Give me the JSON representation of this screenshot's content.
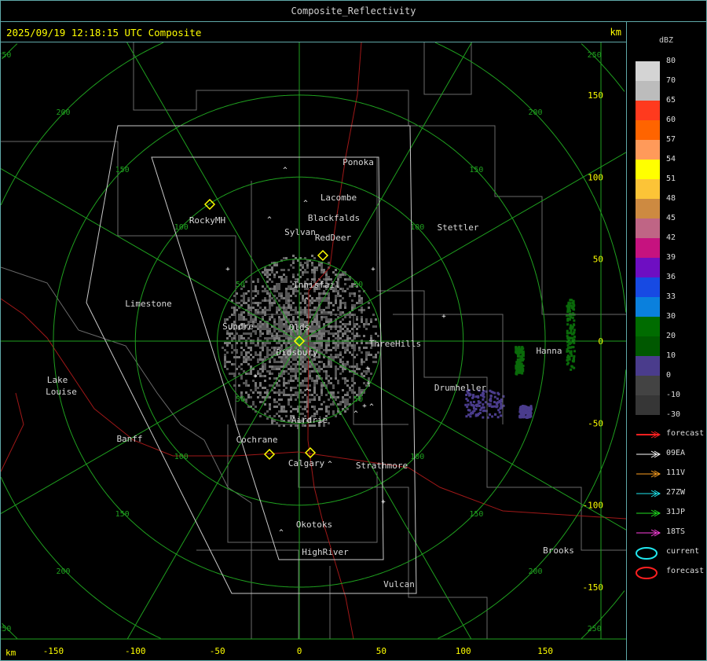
{
  "window": {
    "title": "Composite_Reflectivity"
  },
  "header": {
    "timestamp": "2025/09/19 12:18:15 UTC Composite",
    "unit": "km"
  },
  "axes": {
    "unit_bottom": "km",
    "x_ticks": [
      "-150",
      "-100",
      "-50",
      "0",
      "50",
      "100",
      "150"
    ],
    "y_ticks": [
      "150",
      "100",
      "50",
      "0",
      "-50",
      "-100",
      "-150"
    ],
    "range_rings_km": [
      "50",
      "100",
      "150",
      "200",
      "250"
    ]
  },
  "towns": [
    "Ponoka",
    "Lacombe",
    "Blackfalds",
    "Sylvan",
    "RedDeer",
    "Stettler",
    "RockyMH",
    "Innisfail",
    "Limestone",
    "Sundre",
    "Olds",
    "ThreeHills",
    "Didsbury",
    "Hanna",
    "Drumheller",
    "Lake",
    "Louise",
    "Airdrie",
    "Banff",
    "Cochrane",
    "Calgary",
    "Strathmore",
    "Okotoks",
    "HighRiver",
    "Brooks",
    "Vulcan"
  ],
  "legend": {
    "unit": "dBZ",
    "levels": [
      {
        "label": "80",
        "color": "#d4d4d4"
      },
      {
        "label": "70",
        "color": "#bcbcbc"
      },
      {
        "label": "65",
        "color": "#ff3a1e"
      },
      {
        "label": "60",
        "color": "#ff6400"
      },
      {
        "label": "57",
        "color": "#ff9a5a"
      },
      {
        "label": "54",
        "color": "#ffff00"
      },
      {
        "label": "51",
        "color": "#fcc437"
      },
      {
        "label": "48",
        "color": "#cd8a41"
      },
      {
        "label": "45",
        "color": "#bf6585"
      },
      {
        "label": "42",
        "color": "#c6127f"
      },
      {
        "label": "39",
        "color": "#6e0ec2"
      },
      {
        "label": "36",
        "color": "#174ae3"
      },
      {
        "label": "33",
        "color": "#0a80dd"
      },
      {
        "label": "30",
        "color": "#006c00"
      },
      {
        "label": "20",
        "color": "#005800"
      },
      {
        "label": "10",
        "color": "#4a3c8c"
      },
      {
        "label": "0",
        "color": "#434343"
      },
      {
        "label": "-10",
        "color": "#363636"
      }
    ],
    "bottom_label": "-30",
    "tracks": [
      {
        "label": "forecast",
        "color": "#ff2020",
        "type": "arrow"
      },
      {
        "label": "09EA",
        "color": "#ffffff",
        "type": "arrow"
      },
      {
        "label": "111V",
        "color": "#ffa020",
        "type": "arrow"
      },
      {
        "label": "27ZW",
        "color": "#20e8f0",
        "type": "arrow"
      },
      {
        "label": "31JP",
        "color": "#20e020",
        "type": "arrow"
      },
      {
        "label": "18TS",
        "color": "#ff40e0",
        "type": "arrow"
      },
      {
        "label": "current",
        "color": "#20e8f0",
        "type": "ellipse"
      },
      {
        "label": "forecast",
        "color": "#ff2020",
        "type": "ellipse"
      }
    ]
  },
  "colors": {
    "rings": "#1fa01f",
    "boundaries": "#6a6a6a",
    "roads": "#a01818",
    "domain": "#c8c8c8",
    "labels": "#d8d8d8",
    "frame": "#5fa8a8",
    "site": "#ffff00"
  }
}
